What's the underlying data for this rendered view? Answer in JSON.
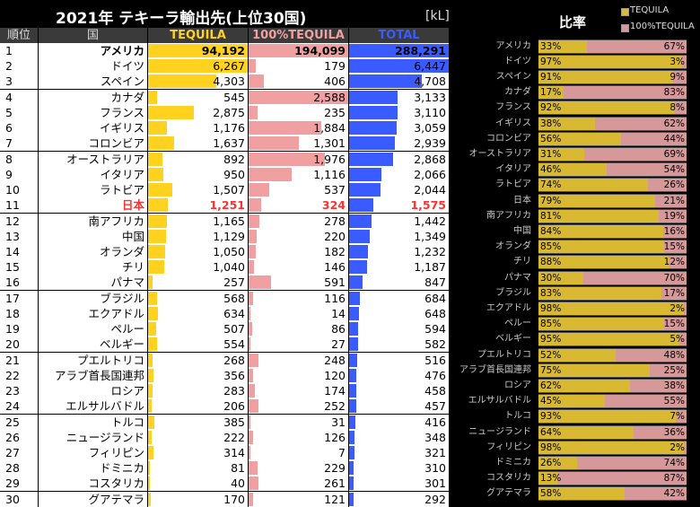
{
  "chart_data": {
    "type": "table",
    "title": "2021年 テキーラ輸出先(上位30国)",
    "unit": "[kL]",
    "columns": [
      "順位",
      "国",
      "TEQUILA",
      "100%TEQUILA",
      "TOTAL"
    ],
    "ratio_title": "比率",
    "legend": [
      "TEQUILA",
      "100%TEQUILA"
    ],
    "colors": {
      "tequila": "#ffd21f",
      "tequila100": "#f0a0a0",
      "total": "#3a5bff",
      "highlight": "#ff3030",
      "ratio_tequila": "#d9b832",
      "ratio_tequila100": "#d69898"
    },
    "rows": [
      {
        "rank": "1",
        "country": "アメリカ",
        "tequila": 94192,
        "tequila100": 194099,
        "total": 288291,
        "pct_tequila": 33,
        "pct_tequila100": 67
      },
      {
        "rank": "2",
        "country": "ドイツ",
        "tequila": 6267,
        "tequila100": 179,
        "total": 6447,
        "pct_tequila": 97,
        "pct_tequila100": 3
      },
      {
        "rank": "3",
        "country": "スペイン",
        "tequila": 4303,
        "tequila100": 406,
        "total": 4708,
        "pct_tequila": 91,
        "pct_tequila100": 9
      },
      {
        "rank": "4",
        "country": "カナダ",
        "tequila": 545,
        "tequila100": 2588,
        "total": 3133,
        "pct_tequila": 17,
        "pct_tequila100": 83
      },
      {
        "rank": "5",
        "country": "フランス",
        "tequila": 2875,
        "tequila100": 235,
        "total": 3110,
        "pct_tequila": 92,
        "pct_tequila100": 8
      },
      {
        "rank": "6",
        "country": "イギリス",
        "tequila": 1176,
        "tequila100": 1884,
        "total": 3059,
        "pct_tequila": 38,
        "pct_tequila100": 62
      },
      {
        "rank": "7",
        "country": "コロンビア",
        "tequila": 1637,
        "tequila100": 1301,
        "total": 2939,
        "pct_tequila": 56,
        "pct_tequila100": 44
      },
      {
        "rank": "8",
        "country": "オーストラリア",
        "tequila": 892,
        "tequila100": 1976,
        "total": 2868,
        "pct_tequila": 31,
        "pct_tequila100": 69
      },
      {
        "rank": "9",
        "country": "イタリア",
        "tequila": 950,
        "tequila100": 1116,
        "total": 2066,
        "pct_tequila": 46,
        "pct_tequila100": 54
      },
      {
        "rank": "10",
        "country": "ラトビア",
        "tequila": 1507,
        "tequila100": 537,
        "total": 2044,
        "pct_tequila": 74,
        "pct_tequila100": 26
      },
      {
        "rank": "11",
        "country": "日本",
        "tequila": 1251,
        "tequila100": 324,
        "total": 1575,
        "pct_tequila": 79,
        "pct_tequila100": 21,
        "highlight": true
      },
      {
        "rank": "12",
        "country": "南アフリカ",
        "tequila": 1165,
        "tequila100": 278,
        "total": 1442,
        "pct_tequila": 81,
        "pct_tequila100": 19
      },
      {
        "rank": "13",
        "country": "中国",
        "tequila": 1129,
        "tequila100": 220,
        "total": 1349,
        "pct_tequila": 84,
        "pct_tequila100": 16
      },
      {
        "rank": "14",
        "country": "オランダ",
        "tequila": 1050,
        "tequila100": 182,
        "total": 1232,
        "pct_tequila": 85,
        "pct_tequila100": 15
      },
      {
        "rank": "15",
        "country": "チリ",
        "tequila": 1040,
        "tequila100": 146,
        "total": 1187,
        "pct_tequila": 88,
        "pct_tequila100": 12
      },
      {
        "rank": "16",
        "country": "パナマ",
        "tequila": 257,
        "tequila100": 591,
        "total": 847,
        "pct_tequila": 30,
        "pct_tequila100": 70
      },
      {
        "rank": "17",
        "country": "ブラジル",
        "tequila": 568,
        "tequila100": 116,
        "total": 684,
        "pct_tequila": 83,
        "pct_tequila100": 17
      },
      {
        "rank": "18",
        "country": "エクアドル",
        "tequila": 634,
        "tequila100": 14,
        "total": 648,
        "pct_tequila": 98,
        "pct_tequila100": 2
      },
      {
        "rank": "19",
        "country": "ペルー",
        "tequila": 507,
        "tequila100": 86,
        "total": 594,
        "pct_tequila": 85,
        "pct_tequila100": 15
      },
      {
        "rank": "20",
        "country": "ベルギー",
        "tequila": 554,
        "tequila100": 27,
        "total": 582,
        "pct_tequila": 95,
        "pct_tequila100": 5
      },
      {
        "rank": "21",
        "country": "プエルトリコ",
        "tequila": 268,
        "tequila100": 248,
        "total": 516,
        "pct_tequila": 52,
        "pct_tequila100": 48
      },
      {
        "rank": "22",
        "country": "アラブ首長国連邦",
        "tequila": 356,
        "tequila100": 120,
        "total": 476,
        "pct_tequila": 75,
        "pct_tequila100": 25
      },
      {
        "rank": "23",
        "country": "ロシア",
        "tequila": 283,
        "tequila100": 174,
        "total": 458,
        "pct_tequila": 62,
        "pct_tequila100": 38
      },
      {
        "rank": "24",
        "country": "エルサルバドル",
        "tequila": 206,
        "tequila100": 252,
        "total": 457,
        "pct_tequila": 45,
        "pct_tequila100": 55
      },
      {
        "rank": "25",
        "country": "トルコ",
        "tequila": 385,
        "tequila100": 31,
        "total": 416,
        "pct_tequila": 93,
        "pct_tequila100": 7
      },
      {
        "rank": "26",
        "country": "ニュージランド",
        "tequila": 222,
        "tequila100": 126,
        "total": 348,
        "pct_tequila": 64,
        "pct_tequila100": 36
      },
      {
        "rank": "27",
        "country": "フィリピン",
        "tequila": 314,
        "tequila100": 7,
        "total": 321,
        "pct_tequila": 98,
        "pct_tequila100": 2
      },
      {
        "rank": "28",
        "country": "ドミニカ",
        "tequila": 81,
        "tequila100": 229,
        "total": 310,
        "pct_tequila": 26,
        "pct_tequila100": 74
      },
      {
        "rank": "29",
        "country": "コスタリカ",
        "tequila": 40,
        "tequila100": 261,
        "total": 301,
        "pct_tequila": 13,
        "pct_tequila100": 87
      },
      {
        "rank": "30",
        "country": "グアテマラ",
        "tequila": 170,
        "tequila100": 121,
        "total": 292,
        "pct_tequila": 58,
        "pct_tequila100": 42
      }
    ]
  }
}
